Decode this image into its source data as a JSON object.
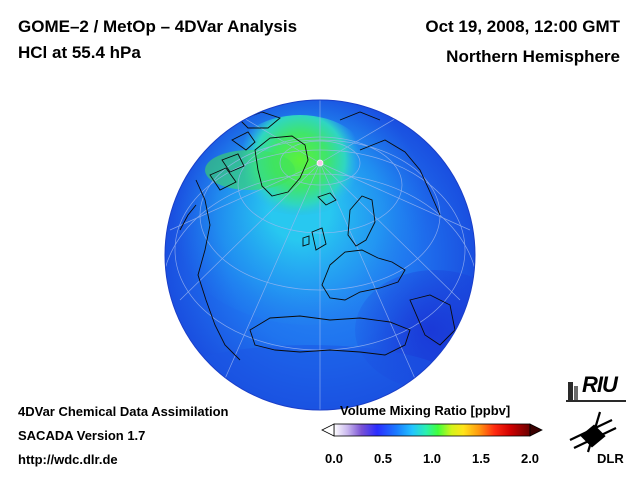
{
  "header": {
    "title_line1": "GOME–2 / MetOp – 4DVar Analysis",
    "title_line2": "HCl at 55.4 hPa",
    "datetime": "Oct 19, 2008, 12:00 GMT",
    "region": "Northern Hemisphere"
  },
  "footer": {
    "line1": "4DVar Chemical Data Assimilation",
    "line2": "SACADA Version 1.7",
    "line3": "http://wdc.dlr.de"
  },
  "colorbar": {
    "title": "Volume Mixing Ratio [ppbv]",
    "min": 0.0,
    "max": 2.0,
    "ticks": [
      "0.0",
      "0.5",
      "1.0",
      "1.5",
      "2.0"
    ],
    "colors": [
      "#ffffff",
      "#d8c8f0",
      "#8b5fd6",
      "#2233ff",
      "#1a7dff",
      "#25c8ff",
      "#2ef0b0",
      "#3cff3c",
      "#d6f51a",
      "#ffe51a",
      "#ff9a10",
      "#ff2a10",
      "#e00000",
      "#a00000",
      "#6a0000"
    ]
  },
  "logos": {
    "riu": "RIU",
    "dlr": "DLR"
  },
  "map": {
    "projection": "orthographic",
    "colors": {
      "ocean_low": "#1f6cf0",
      "mid": "#22c8f5",
      "high": "#3df03a",
      "deep": "#1a3cd8"
    }
  }
}
